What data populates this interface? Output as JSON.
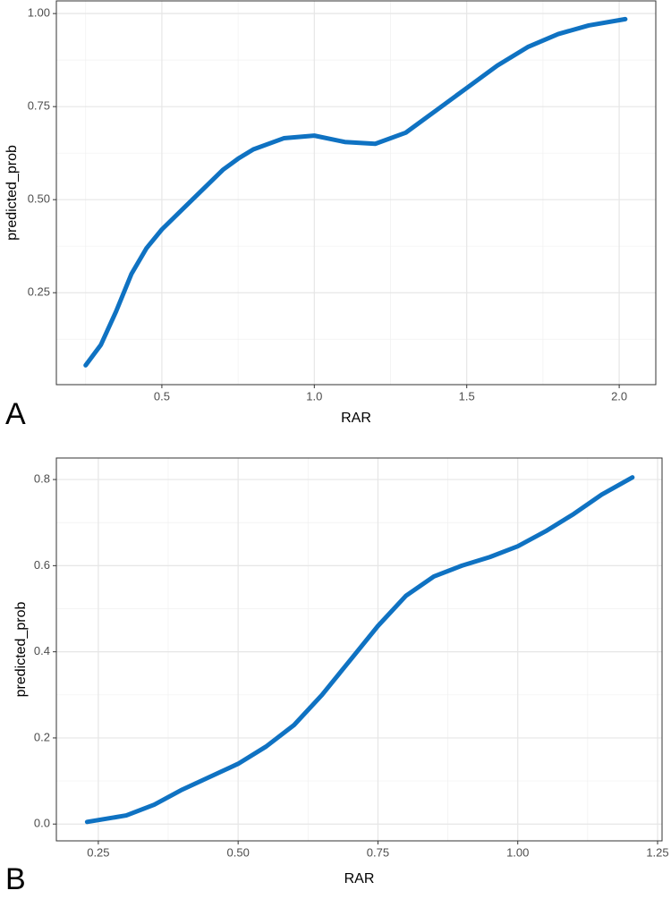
{
  "chart_data": [
    {
      "type": "line",
      "panel_label": "A",
      "x_label": "RAR",
      "y_label": "predicted_prob",
      "x": [
        0.25,
        0.3,
        0.35,
        0.4,
        0.45,
        0.5,
        0.6,
        0.7,
        0.75,
        0.8,
        0.9,
        1.0,
        1.1,
        1.2,
        1.3,
        1.4,
        1.5,
        1.6,
        1.7,
        1.8,
        1.9,
        2.02
      ],
      "values": [
        0.055,
        0.11,
        0.2,
        0.3,
        0.37,
        0.42,
        0.5,
        0.58,
        0.61,
        0.635,
        0.665,
        0.672,
        0.655,
        0.65,
        0.68,
        0.74,
        0.8,
        0.86,
        0.91,
        0.945,
        0.968,
        0.985
      ],
      "color": "#0f72c2",
      "xlim": [
        0.154,
        2.12
      ],
      "ylim": [
        0.003,
        1.034
      ],
      "xticks": [
        {
          "value": 0.5,
          "label": "0.5"
        },
        {
          "value": 1,
          "label": "1.0"
        },
        {
          "value": 1.5,
          "label": "1.5"
        },
        {
          "value": 2,
          "label": "2.0"
        }
      ],
      "yticks": [
        0.25,
        {
          "value": 0.5,
          "label": "0.50"
        },
        0.75,
        {
          "value": 1,
          "label": "1.00"
        }
      ],
      "x_minor_grid": [
        0.25,
        0.75,
        1.25,
        1.75
      ],
      "y_minor_grid": [
        0.125,
        0.375,
        0.625,
        0.875
      ],
      "grid": true
    },
    {
      "type": "line",
      "panel_label": "B",
      "x_label": "RAR",
      "y_label": "predicted_prob",
      "x": [
        0.23,
        0.3,
        0.35,
        0.4,
        0.5,
        0.55,
        0.6,
        0.65,
        0.7,
        0.75,
        0.8,
        0.85,
        0.9,
        0.95,
        1.0,
        1.05,
        1.1,
        1.15,
        1.205
      ],
      "values": [
        0.005,
        0.02,
        0.045,
        0.08,
        0.14,
        0.18,
        0.23,
        0.3,
        0.38,
        0.46,
        0.53,
        0.575,
        0.6,
        0.62,
        0.645,
        0.68,
        0.72,
        0.765,
        0.805
      ],
      "color": "#0f72c2",
      "xlim": [
        0.175,
        1.258
      ],
      "ylim": [
        -0.039,
        0.85
      ],
      "xticks": [
        0.25,
        {
          "value": 0.5,
          "label": "0.50"
        },
        0.75,
        {
          "value": 1,
          "label": "1.00"
        },
        1.25
      ],
      "yticks": [
        {
          "value": 0,
          "label": "0.0"
        },
        0.2,
        0.4,
        0.6,
        0.8
      ],
      "x_minor_grid": [
        0.375,
        0.625,
        0.875,
        1.125
      ],
      "y_minor_grid": [
        0.1,
        0.3,
        0.5,
        0.7
      ],
      "grid": true
    }
  ]
}
